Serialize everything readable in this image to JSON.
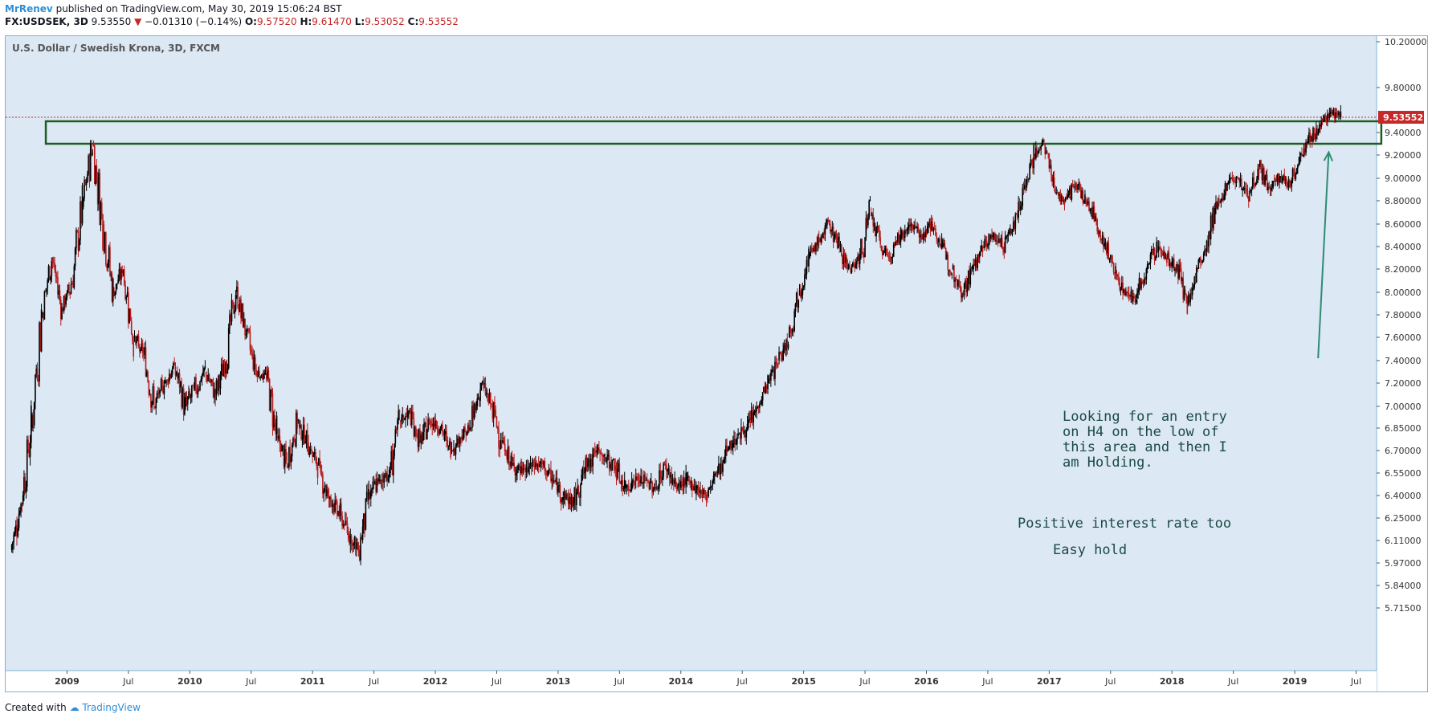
{
  "header": {
    "author": "MrRenev",
    "published": "published on TradingView.com, May 30, 2019 15:06:24 BST",
    "symbol": "FX:USDSEK, 3D",
    "last": "9.53550",
    "change": "−0.01310 (−0.14%)",
    "open_label": "O:",
    "open": "9.57520",
    "high_label": "H:",
    "high": "9.61470",
    "low_label": "L:",
    "low": "9.53052",
    "close_label": "C:",
    "close": "9.53552"
  },
  "footer": {
    "created_with": "Created with",
    "brand": "TradingView"
  },
  "colors": {
    "background": "#dce8f4",
    "up": "#000000",
    "down": "#b71c1c",
    "zone": "#1b5e20",
    "arrow": "#2e8b72",
    "price_tag": "#c62828",
    "annotation": "#1b4a44"
  },
  "chart_data": {
    "type": "candlestick",
    "title": "U.S. Dollar / Swedish Krona, 3D, FXCM",
    "last_price_label": "9.53552",
    "y_ticks": [
      "10.20000",
      "9.80000",
      "9.40000",
      "9.20000",
      "9.00000",
      "8.80000",
      "8.60000",
      "8.40000",
      "8.20000",
      "8.00000",
      "7.80000",
      "7.60000",
      "7.40000",
      "7.20000",
      "7.00000",
      "6.85000",
      "6.70000",
      "6.55000",
      "6.40000",
      "6.25000",
      "6.11000",
      "5.97000",
      "5.84000",
      "5.71500"
    ],
    "x_ticks": [
      "2009",
      "Jul",
      "2010",
      "Jul",
      "2011",
      "Jul",
      "2012",
      "Jul",
      "2013",
      "Jul",
      "2014",
      "Jul",
      "2015",
      "Jul",
      "2016",
      "Jul",
      "2017",
      "Jul",
      "2018",
      "Jul",
      "2019",
      "Jul"
    ],
    "x_range": [
      "2008-07",
      "2019-08"
    ],
    "series": [
      {
        "x": [
          "2008-07",
          "2008-08",
          "2008-09",
          "2008-10",
          "2008-11",
          "2008-12",
          "2009-01",
          "2009-02",
          "2009-03",
          "2009-04",
          "2009-05",
          "2009-06",
          "2009-07",
          "2009-08",
          "2009-09",
          "2009-10",
          "2009-11",
          "2009-12",
          "2010-02",
          "2010-03",
          "2010-04",
          "2010-05",
          "2010-06",
          "2010-07",
          "2010-08",
          "2010-09",
          "2010-10",
          "2010-11",
          "2010-12",
          "2011-01",
          "2011-02",
          "2011-03",
          "2011-04",
          "2011-05",
          "2011-06",
          "2011-07",
          "2011-08",
          "2011-09",
          "2011-10",
          "2011-11",
          "2011-12",
          "2012-01",
          "2012-02",
          "2012-03",
          "2012-04",
          "2012-05",
          "2012-06",
          "2012-07",
          "2012-08",
          "2012-09",
          "2012-10",
          "2012-11",
          "2012-12",
          "2013-01",
          "2013-02",
          "2013-03",
          "2013-04",
          "2013-05",
          "2013-06",
          "2013-07",
          "2013-08",
          "2013-09",
          "2013-10",
          "2013-11",
          "2013-12",
          "2014-01",
          "2014-02",
          "2014-03",
          "2014-04",
          "2014-05",
          "2014-06",
          "2014-07",
          "2014-08",
          "2014-09",
          "2014-10",
          "2014-11",
          "2014-12",
          "2015-01",
          "2015-02",
          "2015-03",
          "2015-04",
          "2015-05",
          "2015-06",
          "2015-07",
          "2015-08",
          "2015-09",
          "2015-10",
          "2015-11",
          "2015-12",
          "2016-01",
          "2016-02",
          "2016-03",
          "2016-04",
          "2016-05",
          "2016-06",
          "2016-07",
          "2016-08",
          "2016-09",
          "2016-10",
          "2016-11",
          "2016-12",
          "2017-01",
          "2017-02",
          "2017-03",
          "2017-04",
          "2017-05",
          "2017-06",
          "2017-07",
          "2017-08",
          "2017-09",
          "2017-10",
          "2017-11",
          "2017-12",
          "2018-01",
          "2018-02",
          "2018-03",
          "2018-04",
          "2018-05",
          "2018-06",
          "2018-07",
          "2018-08",
          "2018-09",
          "2018-10",
          "2018-11",
          "2018-12",
          "2019-01",
          "2019-02",
          "2019-03",
          "2019-04",
          "2019-05"
        ],
        "close": [
          6.05,
          6.35,
          6.85,
          7.8,
          8.3,
          7.85,
          8.1,
          8.75,
          9.3,
          8.6,
          8.0,
          8.2,
          7.6,
          7.45,
          7.0,
          7.2,
          7.35,
          7.0,
          7.3,
          7.1,
          7.4,
          8.0,
          7.65,
          7.3,
          7.25,
          6.8,
          6.6,
          6.9,
          6.75,
          6.6,
          6.4,
          6.3,
          6.15,
          6.05,
          6.4,
          6.5,
          6.55,
          6.9,
          6.95,
          6.75,
          6.9,
          6.85,
          6.7,
          6.8,
          6.85,
          7.2,
          7.0,
          6.75,
          6.6,
          6.55,
          6.6,
          6.6,
          6.5,
          6.4,
          6.35,
          6.55,
          6.7,
          6.65,
          6.6,
          6.45,
          6.5,
          6.5,
          6.45,
          6.6,
          6.45,
          6.5,
          6.45,
          6.4,
          6.55,
          6.7,
          6.8,
          6.85,
          7.0,
          7.2,
          7.4,
          7.6,
          8.0,
          8.3,
          8.45,
          8.6,
          8.4,
          8.2,
          8.3,
          8.7,
          8.4,
          8.3,
          8.5,
          8.6,
          8.5,
          8.6,
          8.4,
          8.2,
          8.0,
          8.2,
          8.4,
          8.5,
          8.4,
          8.6,
          8.9,
          9.2,
          9.3,
          8.9,
          8.8,
          8.95,
          8.8,
          8.65,
          8.4,
          8.15,
          8.0,
          7.95,
          8.2,
          8.4,
          8.3,
          8.2,
          7.9,
          8.2,
          8.4,
          8.8,
          8.95,
          9.0,
          8.85,
          9.1,
          8.9,
          9.0,
          8.95,
          9.2,
          9.35,
          9.45,
          9.6,
          9.54
        ]
      }
    ],
    "annotations": {
      "zone": {
        "from": "2008-12",
        "to": "2019-07",
        "upper": 9.5,
        "lower": 9.3
      },
      "arrow": {
        "from": [
          "2019-02",
          7.42
        ],
        "to": [
          "2019-05",
          9.31
        ]
      },
      "texts": [
        "Looking for an entry",
        "on H4 on the low of",
        "this area and then I",
        "am Holding.",
        "Positive interest rate too",
        "Easy hold"
      ]
    }
  }
}
